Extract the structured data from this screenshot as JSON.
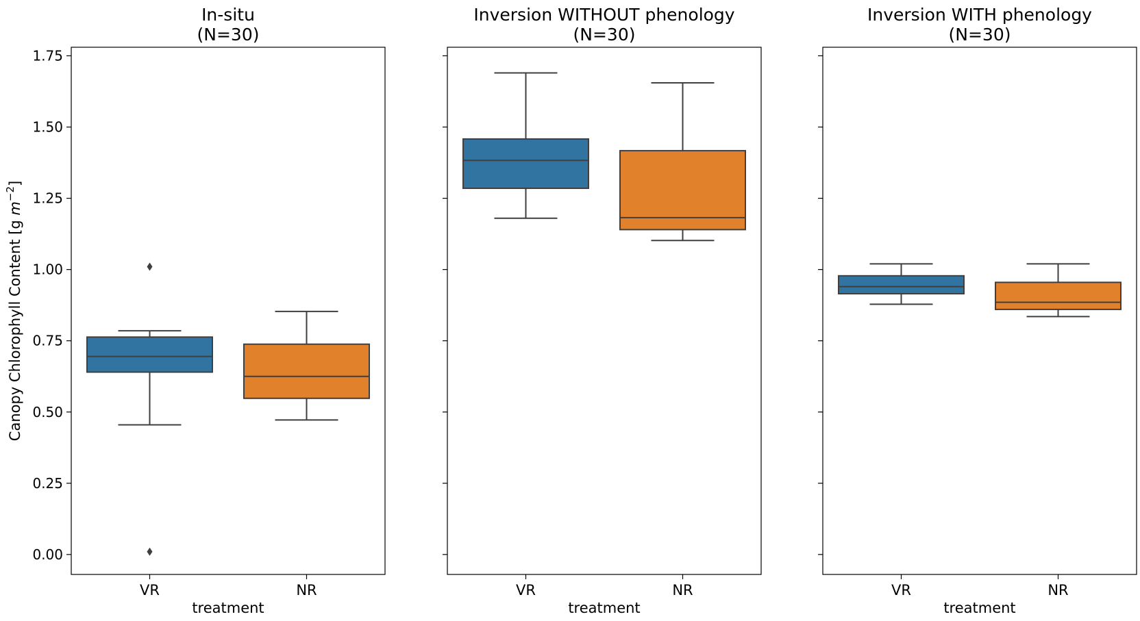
{
  "chart_data": {
    "type": "boxplot",
    "shared_y": true,
    "ylabel": "Canopy Chlorophyll Content [g m⁻²]",
    "ylabel_base": "Canopy Chlorophyll Content [g ",
    "ylabel_unit": "m",
    "ylabel_exp": "−2",
    "ylabel_end": "]",
    "ylim": [
      -0.07,
      1.78
    ],
    "yticks": [
      0.0,
      0.25,
      0.5,
      0.75,
      1.0,
      1.25,
      1.5,
      1.75
    ],
    "ytick_labels": [
      "0.00",
      "0.25",
      "0.50",
      "0.75",
      "1.00",
      "1.25",
      "1.50",
      "1.75"
    ],
    "xlabel": "treatment",
    "categories": [
      "VR",
      "NR"
    ],
    "colors": {
      "VR": "#3274a1",
      "NR": "#e1812c",
      "edge": "#3f3f3f"
    },
    "panels": [
      {
        "title_line1": "In-situ",
        "title_line2": "(N=30)",
        "boxes": [
          {
            "category": "VR",
            "whisker_low": 0.455,
            "q1": 0.64,
            "median": 0.695,
            "q3": 0.763,
            "whisker_high": 0.785,
            "outliers": [
              1.01,
              0.01
            ]
          },
          {
            "category": "NR",
            "whisker_low": 0.472,
            "q1": 0.548,
            "median": 0.625,
            "q3": 0.738,
            "whisker_high": 0.853,
            "outliers": []
          }
        ]
      },
      {
        "title_line1": "Inversion WITHOUT phenology",
        "title_line2": "(N=30)",
        "boxes": [
          {
            "category": "VR",
            "whisker_low": 1.18,
            "q1": 1.285,
            "median": 1.383,
            "q3": 1.458,
            "whisker_high": 1.69,
            "outliers": []
          },
          {
            "category": "NR",
            "whisker_low": 1.102,
            "q1": 1.14,
            "median": 1.182,
            "q3": 1.417,
            "whisker_high": 1.655,
            "outliers": []
          }
        ]
      },
      {
        "title_line1": "Inversion WITH phenology",
        "title_line2": "(N=30)",
        "boxes": [
          {
            "category": "VR",
            "whisker_low": 0.878,
            "q1": 0.915,
            "median": 0.94,
            "q3": 0.978,
            "whisker_high": 1.02,
            "outliers": []
          },
          {
            "category": "NR",
            "whisker_low": 0.835,
            "q1": 0.86,
            "median": 0.885,
            "q3": 0.955,
            "whisker_high": 1.02,
            "outliers": []
          }
        ]
      }
    ]
  }
}
